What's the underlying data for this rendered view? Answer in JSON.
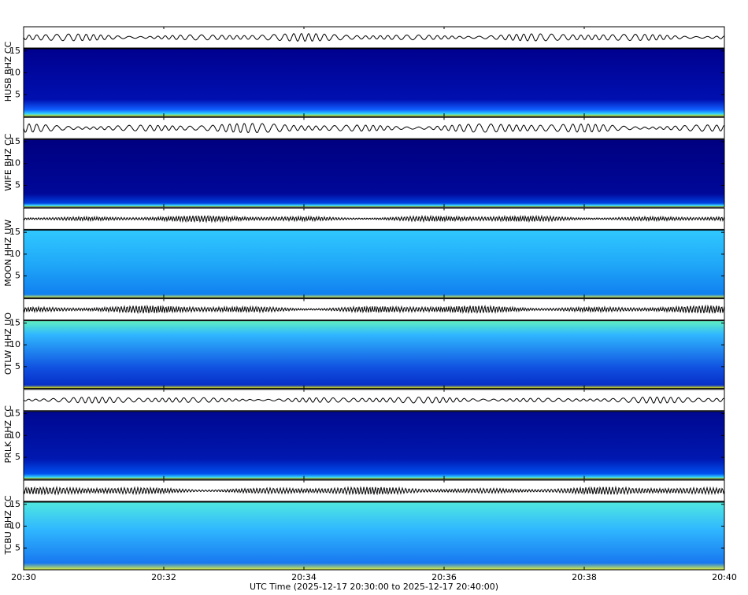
{
  "chart_data": {
    "type": "spectrogram",
    "x_label": "UTC Time (2025-12-17 20:30:00 to 2025-12-17 20:40:00)",
    "xlim": [
      0,
      10
    ],
    "xticks": [
      {
        "value": 0,
        "label": "20:30"
      },
      {
        "value": 2,
        "label": "20:32"
      },
      {
        "value": 4,
        "label": "20:34"
      },
      {
        "value": 6,
        "label": "20:36"
      },
      {
        "value": 8,
        "label": "20:38"
      },
      {
        "value": 10,
        "label": "20:40"
      }
    ],
    "panels": [
      {
        "label": "HUSB BHZ CC",
        "ylim": [
          0,
          15.5
        ],
        "yticks": [
          5,
          10,
          15
        ]
      },
      {
        "label": "WIFE BHZ CC",
        "ylim": [
          0,
          15.5
        ],
        "yticks": [
          5,
          10,
          15
        ]
      },
      {
        "label": "MOON HHZ UW",
        "ylim": [
          0,
          15.5
        ],
        "yticks": [
          5,
          10,
          15
        ]
      },
      {
        "label": "OTLW HHZ UO",
        "ylim": [
          0,
          15.5
        ],
        "yticks": [
          5,
          10,
          15
        ]
      },
      {
        "label": "PRLK BHZ CC",
        "ylim": [
          0,
          15.5
        ],
        "yticks": [
          5,
          10,
          15
        ]
      },
      {
        "label": "TCBU BHZ CC",
        "ylim": [
          0,
          15.5
        ],
        "yticks": [
          5,
          10,
          15
        ]
      }
    ]
  }
}
